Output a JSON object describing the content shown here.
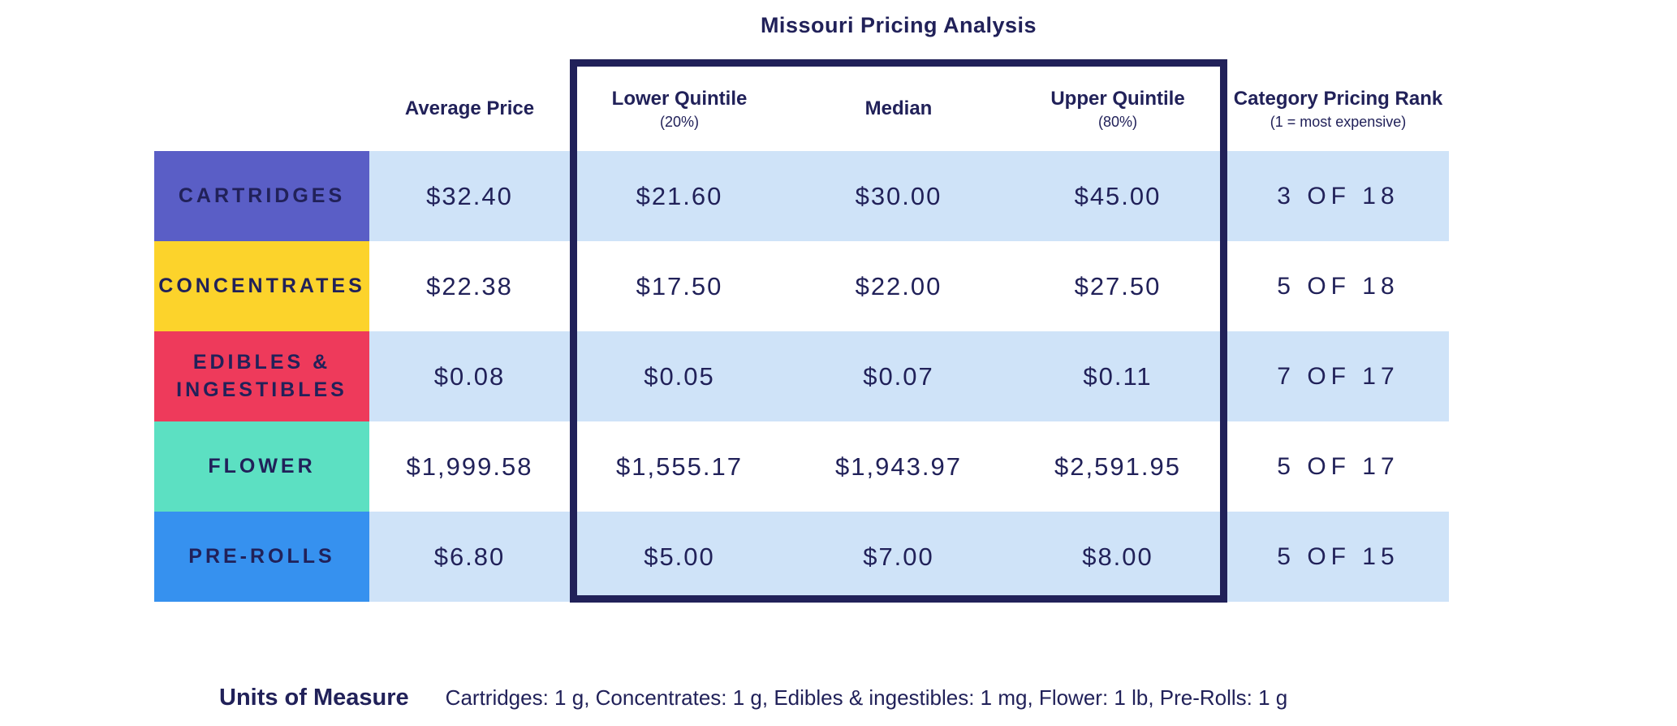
{
  "title": "Missouri Pricing Analysis",
  "header": {
    "average_price": "Average Price",
    "lower_quintile": "Lower Quintile",
    "lower_quintile_sub": "(20%)",
    "median": "Median",
    "upper_quintile": "Upper Quintile",
    "upper_quintile_sub": "(80%)",
    "rank": "Category Pricing Rank",
    "rank_sub": "(1 = most expensive)"
  },
  "rows": [
    {
      "category": "CARTRIDGES",
      "color": "#5a5ec6",
      "average_price": "$32.40",
      "lower_quintile": "$21.60",
      "median": "$30.00",
      "upper_quintile": "$45.00",
      "rank": "3 OF 18"
    },
    {
      "category": "CONCENTRATES",
      "color": "#fcd32b",
      "average_price": "$22.38",
      "lower_quintile": "$17.50",
      "median": "$22.00",
      "upper_quintile": "$27.50",
      "rank": "5 OF 18"
    },
    {
      "category": "EDIBLES & INGESTIBLES",
      "color": "#ee3a5b",
      "average_price": "$0.08",
      "lower_quintile": "$0.05",
      "median": "$0.07",
      "upper_quintile": "$0.11",
      "rank": "7 OF 17"
    },
    {
      "category": "FLOWER",
      "color": "#5ce0c2",
      "average_price": "$1,999.58",
      "lower_quintile": "$1,555.17",
      "median": "$1,943.97",
      "upper_quintile": "$2,591.95",
      "rank": "5 OF 17"
    },
    {
      "category": "PRE-ROLLS",
      "color": "#3691ef",
      "average_price": "$6.80",
      "lower_quintile": "$5.00",
      "median": "$7.00",
      "upper_quintile": "$8.00",
      "rank": "5 OF 15"
    }
  ],
  "footer": {
    "label": "Units of Measure",
    "text": "Cartridges: 1 g, Concentrates: 1 g, Edibles & ingestibles: 1 mg, Flower: 1 lb, Pre-Rolls: 1 g"
  },
  "palette": {
    "navy_text_and_border": "#212159",
    "row_stripe_blue": "#cfe3f8",
    "row_stripe_white": "#ffffff"
  },
  "chart_data": {
    "type": "table",
    "title": "Missouri Pricing Analysis",
    "columns": [
      "Category",
      "Average Price",
      "Lower Quintile (20%)",
      "Median",
      "Upper Quintile (80%)",
      "Category Pricing Rank (1 = most expensive)"
    ],
    "rows": [
      [
        "CARTRIDGES",
        32.4,
        21.6,
        30.0,
        45.0,
        "3 OF 18"
      ],
      [
        "CONCENTRATES",
        22.38,
        17.5,
        22.0,
        27.5,
        "5 OF 18"
      ],
      [
        "EDIBLES & INGESTIBLES",
        0.08,
        0.05,
        0.07,
        0.11,
        "7 OF 17"
      ],
      [
        "FLOWER",
        1999.58,
        1555.17,
        1943.97,
        2591.95,
        "5 OF 17"
      ],
      [
        "PRE-ROLLS",
        6.8,
        5.0,
        7.0,
        8.0,
        "5 OF 15"
      ]
    ],
    "units_of_measure": "Cartridges: 1 g, Concentrates: 1 g, Edibles & ingestibles: 1 mg, Flower: 1 lb, Pre-Rolls: 1 g",
    "highlighted_columns": [
      "Lower Quintile (20%)",
      "Median",
      "Upper Quintile (80%)"
    ]
  }
}
